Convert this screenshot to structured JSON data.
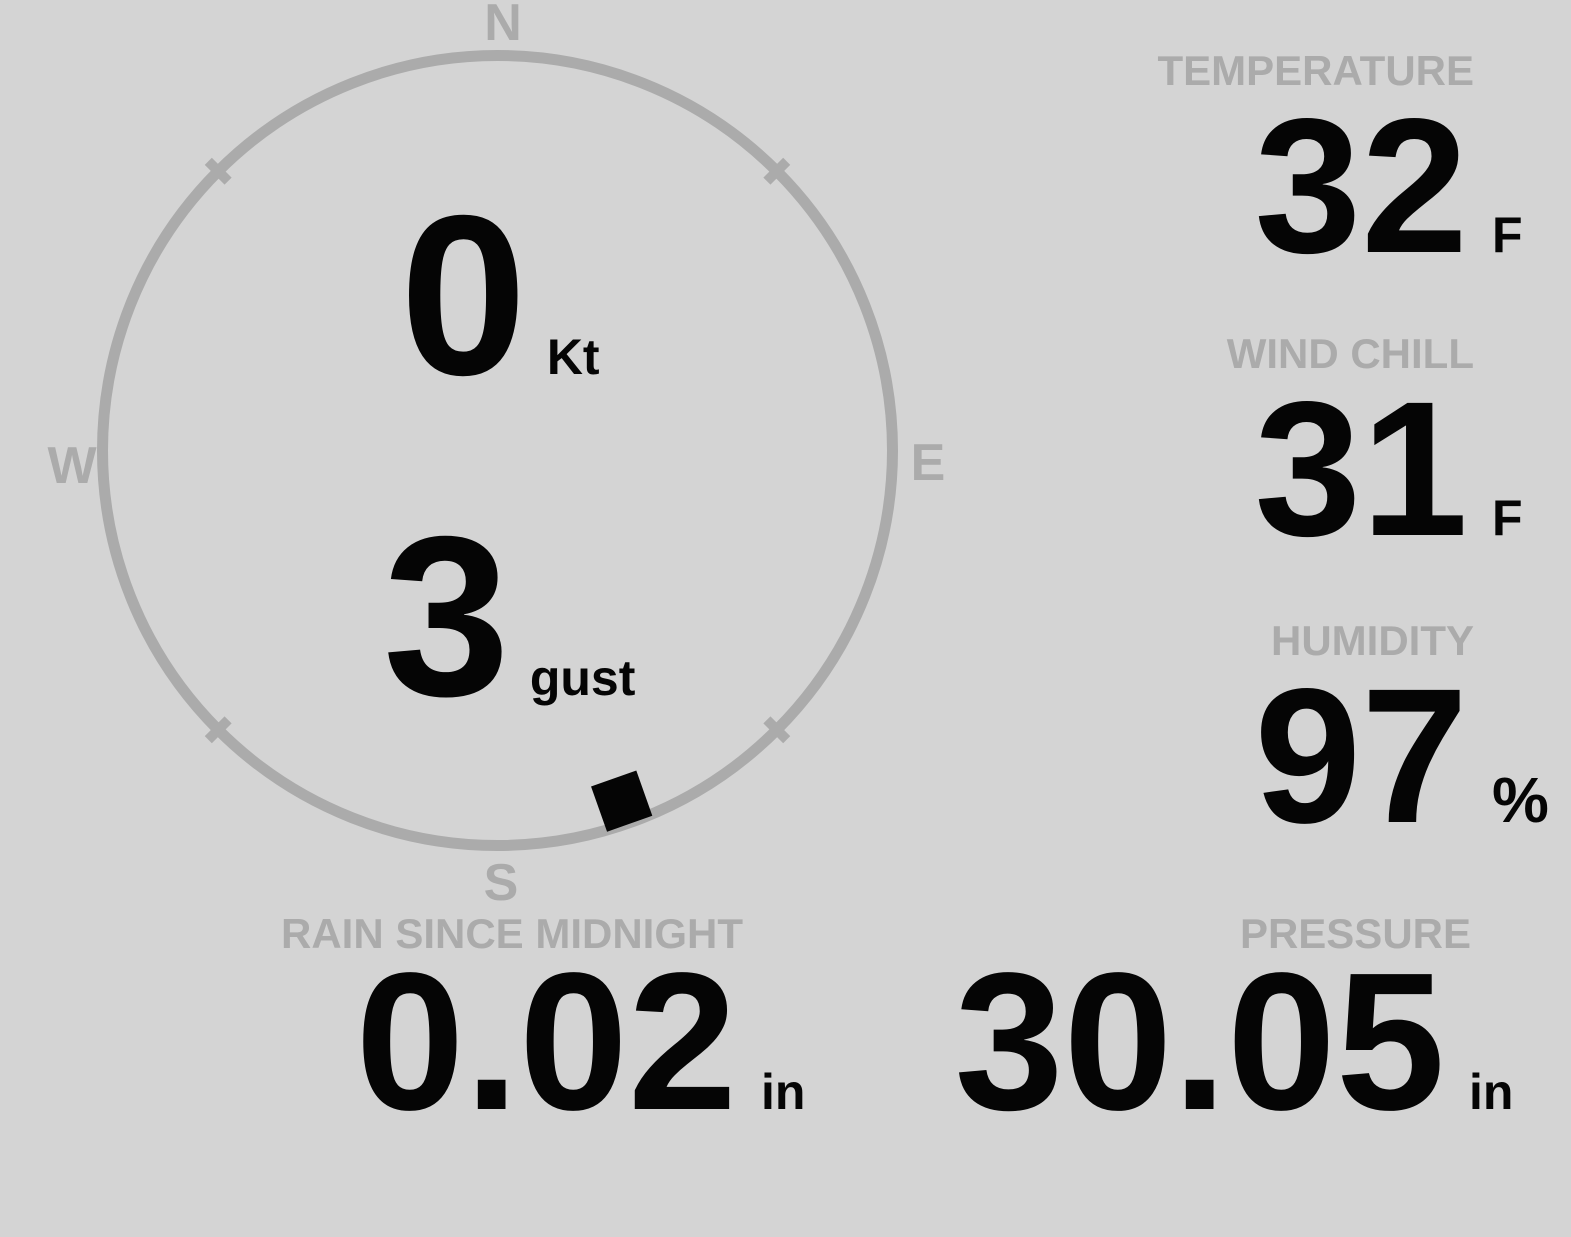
{
  "theme": {
    "background": "#d4d4d4",
    "muted_gray": "#ababab",
    "value_black": "#050505"
  },
  "compass": {
    "cardinals": {
      "north": "N",
      "east": "E",
      "south": "S",
      "west": "W"
    },
    "wind_speed": {
      "value": "0",
      "unit": "Kt"
    },
    "wind_gust": {
      "value": "3",
      "unit": "gust"
    },
    "wind_direction_deg": 160.5
  },
  "metrics": {
    "temperature": {
      "label": "TEMPERATURE",
      "value": "32",
      "unit": "F"
    },
    "wind_chill": {
      "label": "WIND CHILL",
      "value": "31",
      "unit": "F"
    },
    "humidity": {
      "label": "HUMIDITY",
      "value": "97",
      "unit": "%"
    },
    "rain_since_midnight": {
      "label": "RAIN SINCE MIDNIGHT",
      "value": "0.02",
      "unit": "in"
    },
    "pressure": {
      "label": "PRESSURE",
      "value": "30.05",
      "unit": "in"
    }
  }
}
